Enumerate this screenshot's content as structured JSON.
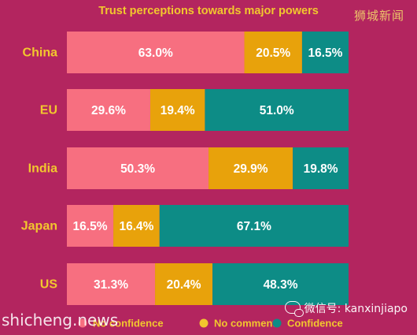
{
  "watermarks": {
    "top_right": "狮城新闻",
    "bottom_left": "shicheng.news",
    "bottom_right": "微信号: kanxinjiapo"
  },
  "colors": {
    "background": "#b3255f",
    "title": "#f2c72e",
    "category": "#f2c72e",
    "bar_text": "#ffffff",
    "no_confidence": "#f76f80",
    "no_comment": "#e8a20b",
    "confidence": "#0d8c86"
  },
  "chart_data": {
    "type": "bar",
    "orientation": "horizontal",
    "stacked": true,
    "title": "Trust perceptions towards major powers",
    "categories": [
      "China",
      "EU",
      "India",
      "Japan",
      "US"
    ],
    "series": [
      {
        "name": "No confidence",
        "color": "#f76f80",
        "values": [
          63.0,
          29.6,
          50.3,
          16.5,
          31.3
        ],
        "labels": [
          "63.0%",
          "29.6%",
          "50.3%",
          "16.5%",
          "31.3%"
        ]
      },
      {
        "name": "No comment",
        "color": "#e8a20b",
        "values": [
          20.5,
          19.4,
          29.9,
          16.4,
          20.4
        ],
        "labels": [
          "20.5%",
          "19.4%",
          "29.9%",
          "16.4%",
          "20.4%"
        ]
      },
      {
        "name": "Confidence",
        "color": "#0d8c86",
        "values": [
          16.5,
          51.0,
          19.8,
          67.1,
          48.3
        ],
        "labels": [
          "16.5%",
          "51.0%",
          "19.8%",
          "67.1%",
          "48.3%"
        ]
      }
    ],
    "xlim": [
      0,
      100
    ],
    "xlabel": "",
    "ylabel": "",
    "grid": false,
    "legend": "bottom"
  }
}
